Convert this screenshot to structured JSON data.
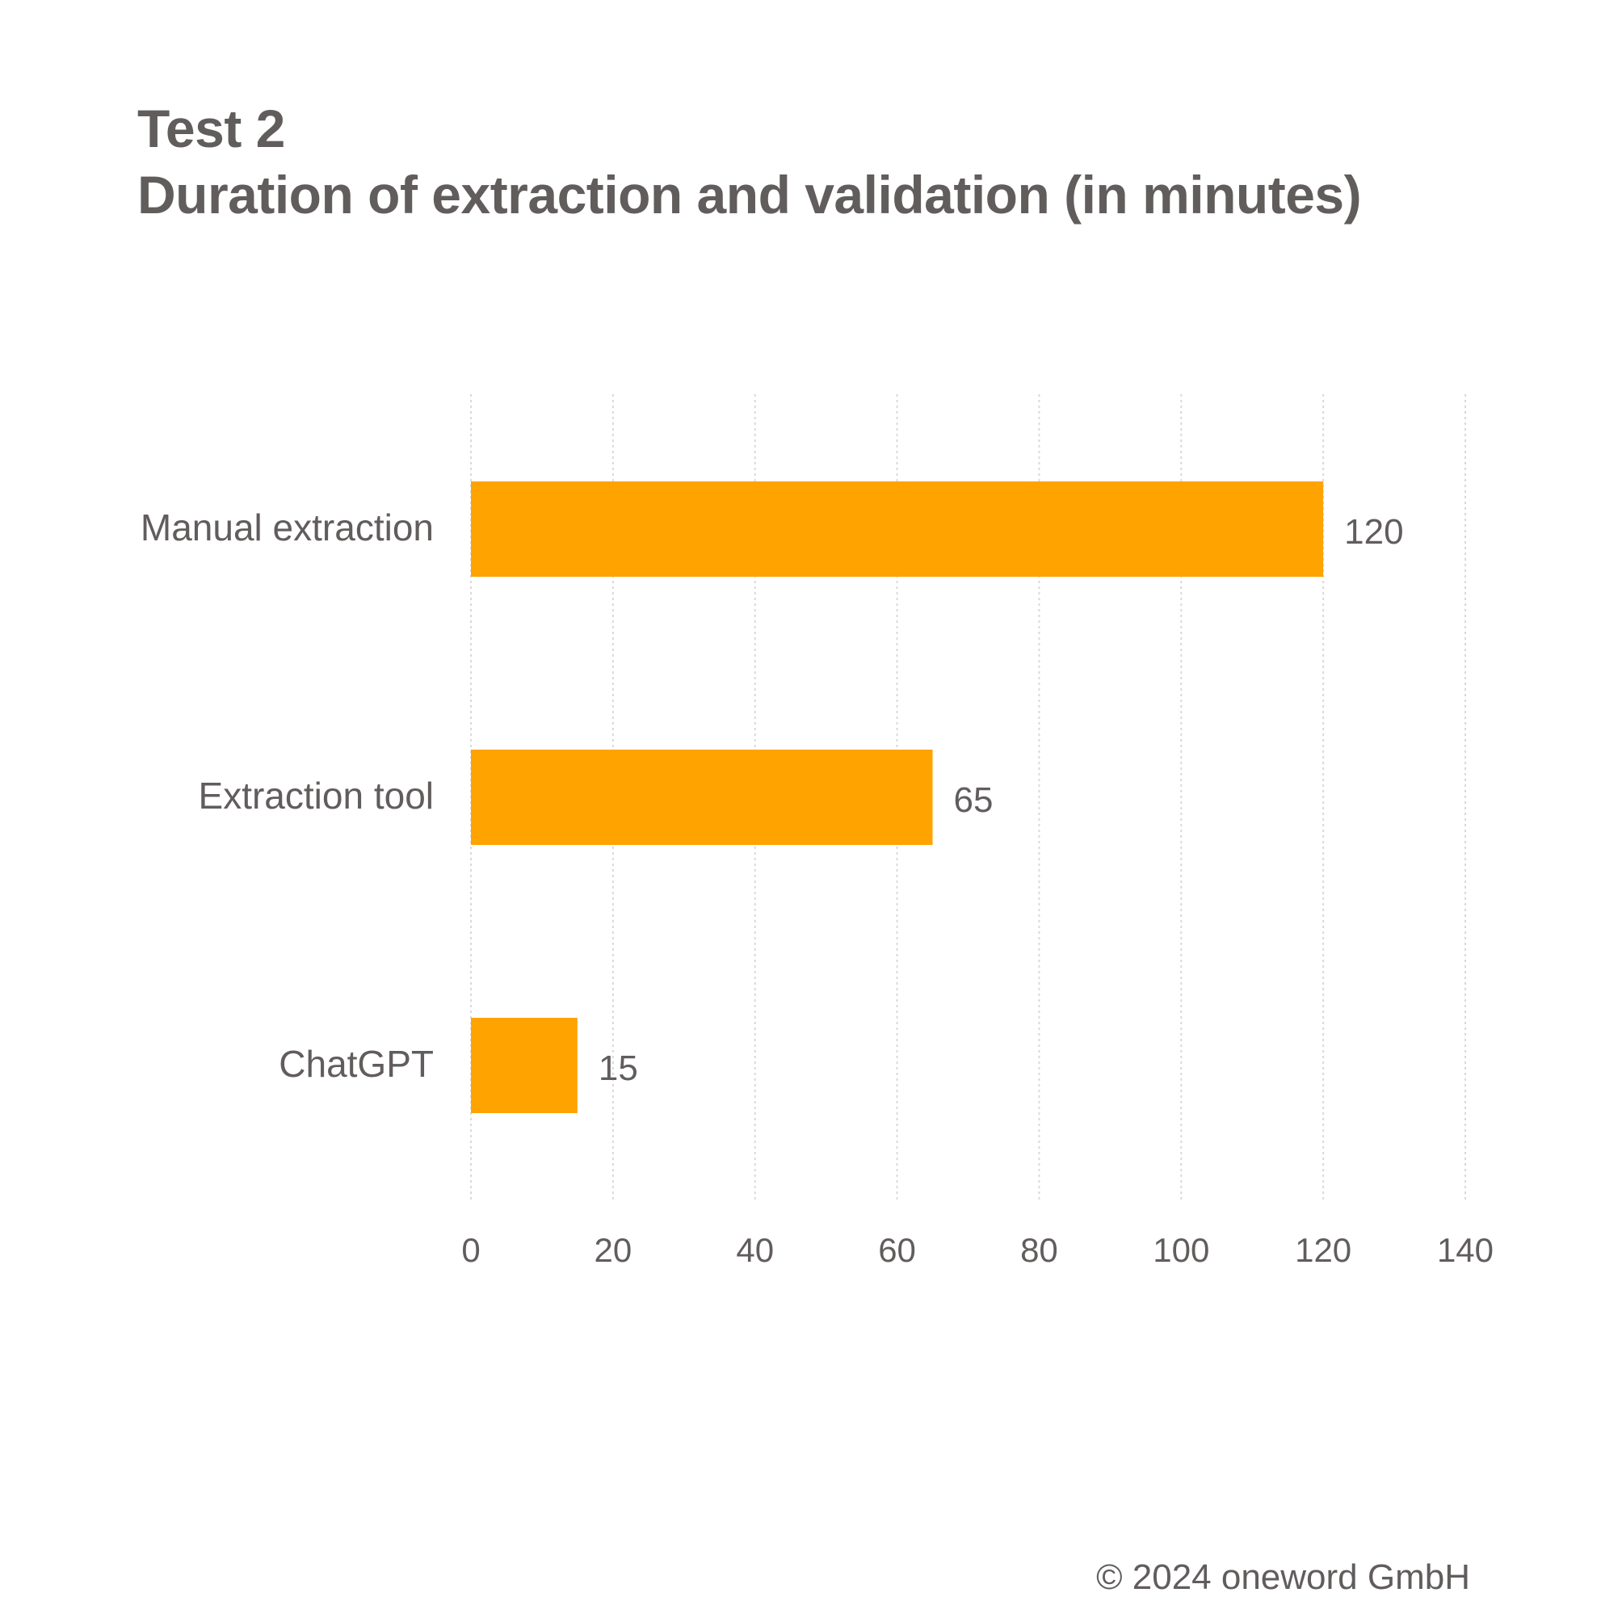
{
  "chart_data": {
    "type": "bar",
    "orientation": "horizontal",
    "title": "Test 2",
    "subtitle": "Duration of extraction and validation (in minutes)",
    "categories": [
      "Manual extraction",
      "Extraction tool",
      "ChatGPT"
    ],
    "values": [
      120,
      65,
      15
    ],
    "xlim": [
      0,
      140
    ],
    "xticks": [
      "0",
      "20",
      "40",
      "60",
      "80",
      "100",
      "120",
      "140"
    ],
    "grid": true,
    "bar_color": "#ffa300",
    "gridline_color": "#d9d9d9",
    "text_color": "#625d5d"
  },
  "footer": {
    "copyright": "© 2024 oneword GmbH"
  }
}
